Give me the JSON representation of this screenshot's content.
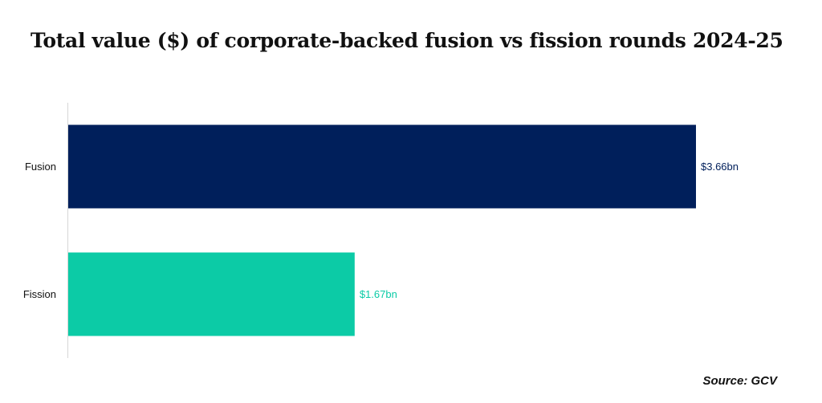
{
  "chart_data": {
    "type": "bar",
    "orientation": "horizontal",
    "title": "Total value ($) of corporate-backed fusion vs fission rounds 2024-25",
    "categories": [
      "Fusion",
      "Fission"
    ],
    "values": [
      3.66,
      1.67
    ],
    "value_labels": [
      "$3.66bn",
      "$1.67bn"
    ],
    "colors": [
      "#001f5b",
      "#0ccba6"
    ],
    "xlim": [
      0,
      3.66
    ],
    "grid": false,
    "legend": "none",
    "source": "Source: GCV"
  }
}
